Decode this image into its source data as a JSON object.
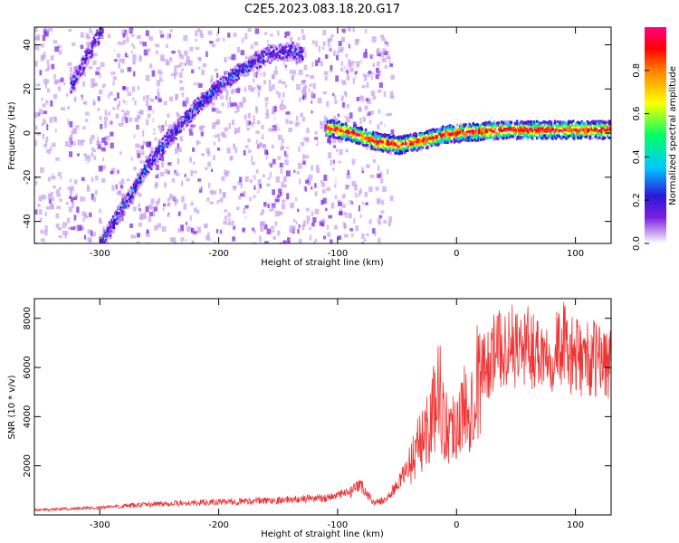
{
  "title": "C2E5.2023.083.18.20.G17",
  "chart_data": [
    {
      "type": "heatmap",
      "xlabel": "Height of straight line (km)",
      "ylabel": "Frequency (Hz)",
      "xlim": [
        -355,
        130
      ],
      "ylim": [
        -50,
        48
      ],
      "xticks": [
        -300,
        -200,
        -100,
        0,
        100
      ],
      "yticks": [
        -40,
        -20,
        0,
        20,
        40
      ],
      "grid": false,
      "colorbar": {
        "label": "Normalized spectral amplitude",
        "range": [
          0,
          1
        ],
        "ticks": [
          0.0,
          0.2,
          0.4,
          0.6,
          0.8
        ],
        "colors": [
          "#ffffff",
          "#c8a0f0",
          "#7a1fe0",
          "#2a18d8",
          "#00c8ff",
          "#00ff66",
          "#ffff00",
          "#ff8000",
          "#ff0000",
          "#ff0080"
        ]
      },
      "features": [
        {
          "name": "rising branch",
          "x": [
            -300,
            -280,
            -260,
            -240,
            -220,
            -200,
            -180,
            -160,
            -140,
            -130
          ],
          "y": [
            -50,
            -32,
            -14,
            0,
            12,
            22,
            30,
            36,
            38,
            36
          ],
          "peak_amplitude": 0.35
        },
        {
          "name": "upper branch",
          "x": [
            -325,
            -315,
            -305,
            -298
          ],
          "y": [
            22,
            32,
            42,
            48
          ],
          "peak_amplitude": 0.3
        },
        {
          "name": "main line",
          "x": [
            -110,
            -90,
            -70,
            -50,
            -30,
            -10,
            10,
            40,
            80,
            130
          ],
          "y": [
            3,
            1,
            -3,
            -5,
            -3,
            0,
            1,
            2,
            2,
            2
          ],
          "peak_amplitude": 0.95
        }
      ]
    },
    {
      "type": "line",
      "xlabel": "Height of straight line (km)",
      "ylabel": "SNR (10 * v/v)",
      "xlim": [
        -355,
        130
      ],
      "ylim": [
        0,
        8800
      ],
      "xticks": [
        -300,
        -200,
        -100,
        0,
        100
      ],
      "yticks": [
        2000,
        4000,
        6000,
        8000
      ],
      "grid": false,
      "series": [
        {
          "color": "#ee3333",
          "x": [
            -355,
            -300,
            -250,
            -200,
            -150,
            -110,
            -90,
            -80,
            -70,
            -60,
            -50,
            -40,
            -30,
            -20,
            -15,
            -10,
            0,
            10,
            20,
            30,
            40,
            60,
            80,
            90,
            95,
            100,
            130
          ],
          "y": [
            200,
            300,
            450,
            520,
            600,
            700,
            900,
            1200,
            500,
            600,
            1200,
            2000,
            3000,
            4000,
            5500,
            3500,
            3800,
            4500,
            5800,
            6500,
            6900,
            6800,
            6600,
            7000,
            6500,
            6400,
            6300
          ]
        }
      ]
    }
  ]
}
